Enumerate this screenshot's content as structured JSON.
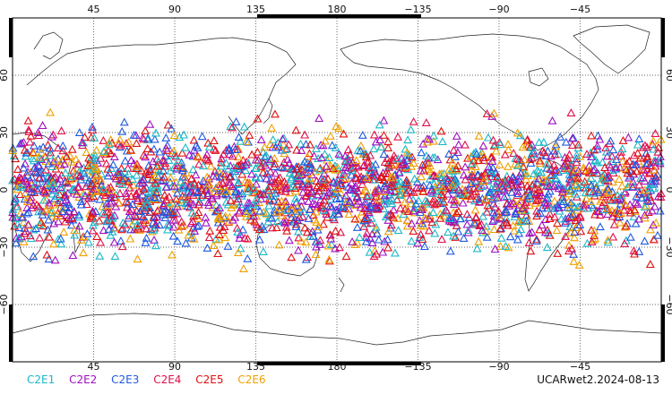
{
  "map": {
    "projection": "cylindrical equidistant",
    "lon_range": [
      0,
      360
    ],
    "lat_range": [
      -90,
      90
    ],
    "gridlines": "dotted",
    "x_tick_labels": [
      {
        "lon": 45,
        "label": "45"
      },
      {
        "lon": 90,
        "label": "90"
      },
      {
        "lon": 135,
        "label": "135"
      },
      {
        "lon": 180,
        "label": "180"
      },
      {
        "lon": 225,
        "label": "−135"
      },
      {
        "lon": 270,
        "label": "−90"
      },
      {
        "lon": 315,
        "label": "−45"
      }
    ],
    "y_tick_labels": [
      {
        "lat": 60,
        "label": "60"
      },
      {
        "lat": 30,
        "label": "30"
      },
      {
        "lat": 0,
        "label": "0"
      },
      {
        "lat": -30,
        "label": "−30"
      },
      {
        "lat": -60,
        "label": "−60"
      }
    ],
    "marker_shape": "open triangle",
    "occultation_lat_band": [
      -45,
      45
    ]
  },
  "legend": {
    "items": [
      {
        "name": "C2E1",
        "color": "#1ab8c8"
      },
      {
        "name": "C2E2",
        "color": "#a010c0"
      },
      {
        "name": "C2E3",
        "color": "#1e5ae0"
      },
      {
        "name": "C2E4",
        "color": "#e0104a"
      },
      {
        "name": "C2E5",
        "color": "#e01010"
      },
      {
        "name": "C2E6",
        "color": "#f0a000"
      }
    ]
  },
  "source_label": "UCARwet2.2024-08-13"
}
